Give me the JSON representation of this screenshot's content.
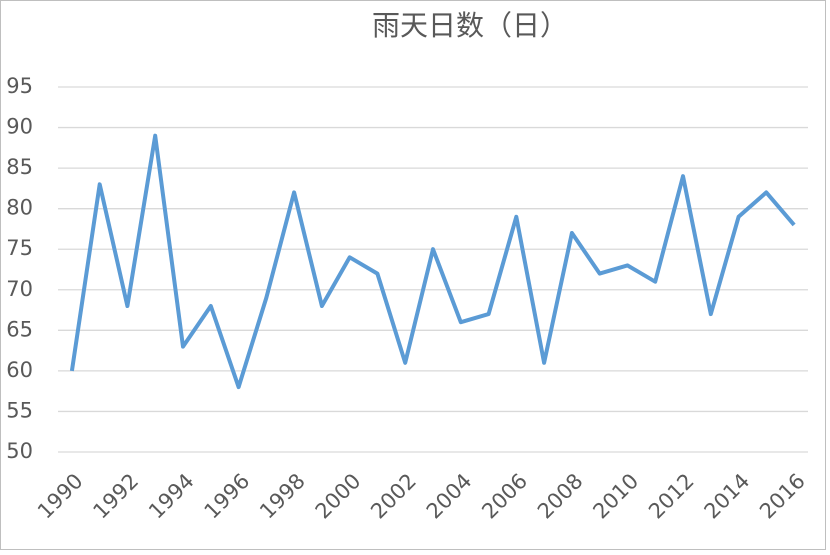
{
  "chart_data": {
    "type": "line",
    "title": "雨天日数（日）",
    "categories": [
      "1990",
      null,
      "1992",
      null,
      "1994",
      null,
      "1996",
      null,
      "1998",
      null,
      "2000",
      null,
      "2002",
      null,
      "2004",
      null,
      "2006",
      null,
      "2008",
      null,
      "2010",
      null,
      "2012",
      null,
      "2014",
      null,
      "2016"
    ],
    "series": [
      {
        "color": "#5b9bd5",
        "values": [
          60,
          83,
          68,
          89,
          63,
          68,
          58,
          69,
          82,
          68,
          74,
          72,
          61,
          75,
          66,
          67,
          79,
          61,
          77,
          72,
          73,
          71,
          84,
          67,
          79,
          82,
          78
        ]
      }
    ],
    "ylim": [
      50,
      95
    ],
    "yticks": [
      50,
      55,
      60,
      65,
      70,
      75,
      80,
      85,
      90,
      95
    ],
    "grid": true
  }
}
